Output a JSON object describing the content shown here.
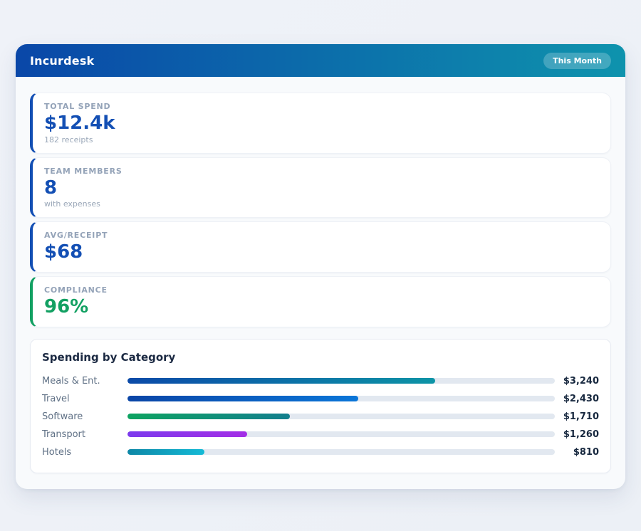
{
  "app": {
    "title": "Incurdesk",
    "period_badge": "This Month"
  },
  "colors": {
    "header_gradient_start": "#0a47a8",
    "header_gradient_end": "#0e93ad",
    "accent_blue": "#134fb4",
    "accent_green": "#12a062",
    "track": "#e2e8f0",
    "page_background": "#edf1f7",
    "panel_background": "#f8fafc"
  },
  "stats": {
    "items": [
      {
        "label": "TOTAL SPEND",
        "value": "$12.4k",
        "sub": "182 receipts",
        "accent": "#134fb4"
      },
      {
        "label": "TEAM MEMBERS",
        "value": "8",
        "sub": "with expenses",
        "accent": "#134fb4"
      },
      {
        "label": "AVG/RECEIPT",
        "value": "$68",
        "sub": "",
        "accent": "#134fb4"
      },
      {
        "label": "COMPLIANCE",
        "value": "96%",
        "sub": "",
        "accent": "#12a062"
      }
    ]
  },
  "chart_data": {
    "type": "bar",
    "orientation": "horizontal",
    "title": "Spending by Category",
    "categories": [
      "Meals & Ent.",
      "Travel",
      "Software",
      "Transport",
      "Hotels"
    ],
    "values": [
      3240,
      2430,
      1710,
      1260,
      810
    ],
    "value_labels": [
      "$3,240",
      "$2,430",
      "$1,710",
      "$1,260",
      "$810"
    ],
    "xlim": [
      0,
      4500
    ],
    "grid": false,
    "legend": false,
    "track_color": "#e2e8f0",
    "bar_gradients": [
      [
        "#0b4aa8",
        "#0d94a6"
      ],
      [
        "#0a45a6",
        "#0b76d8"
      ],
      [
        "#0da361",
        "#137f8e"
      ],
      [
        "#7c3aed",
        "#a32ee6"
      ],
      [
        "#0e87a6",
        "#14bad6"
      ]
    ]
  }
}
